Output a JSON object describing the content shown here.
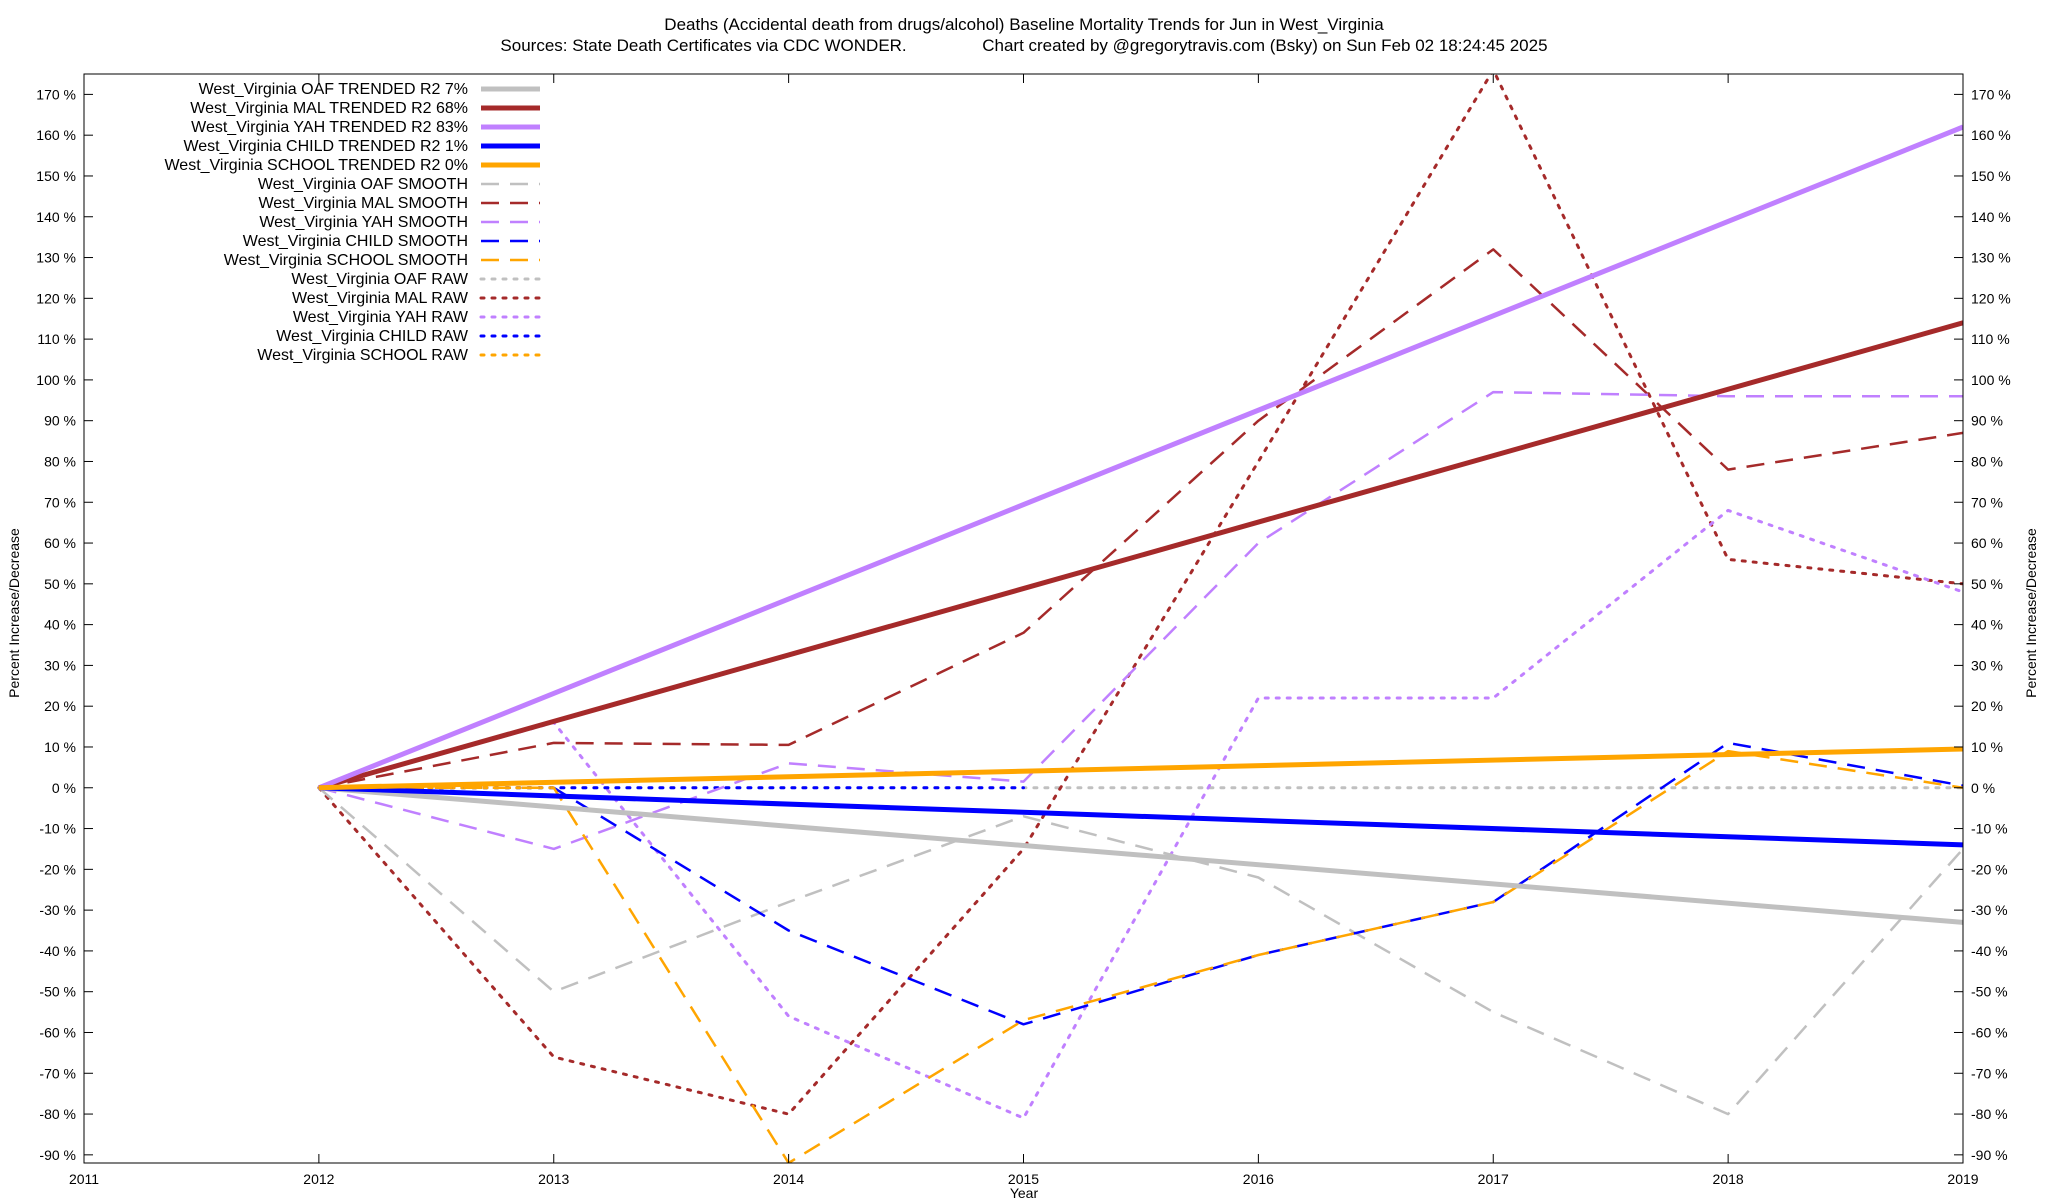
{
  "chart_data": {
    "type": "line",
    "title": "Deaths (Accidental death from drugs/alcohol)  Baseline Mortality Trends for Jun in West_Virginia",
    "subtitle": "Sources: State Death Certificates via CDC WONDER.                Chart created by @gregorytravis.com (Bsky) on Sun Feb 02 18:24:45 2025",
    "xlabel": "Year",
    "ylabel": "Percent Increase/Decrease",
    "y2label": "Percent Increase/Decrease",
    "xlim": [
      2011,
      2019
    ],
    "ylim": [
      -92,
      175
    ],
    "x_ticks": [
      "2011",
      "2012",
      "2013",
      "2014",
      "2015",
      "2016",
      "2017",
      "2018",
      "2019"
    ],
    "y_ticks": [
      "-90 %",
      "-80 %",
      "-70 %",
      "-60 %",
      "-50 %",
      "-40 %",
      "-30 %",
      "-20 %",
      "-10 %",
      "0 %",
      "10 %",
      "20 %",
      "30 %",
      "40 %",
      "50 %",
      "60 %",
      "70 %",
      "80 %",
      "90 %",
      "100 %",
      "110 %",
      "120 %",
      "130 %",
      "140 %",
      "150 %",
      "160 %",
      "170 %"
    ],
    "legend_position": "top-left",
    "series": [
      {
        "name": "West_Virginia OAF TRENDED R2  7%",
        "color": "#c0c0c0",
        "style": "solid",
        "x": [
          2012,
          2019
        ],
        "y": [
          0,
          -33
        ]
      },
      {
        "name": "West_Virginia MAL TRENDED R2  68%",
        "color": "#a52a2a",
        "style": "solid",
        "x": [
          2012,
          2019
        ],
        "y": [
          0,
          114
        ]
      },
      {
        "name": "West_Virginia YAH TRENDED R2  83%",
        "color": "#c080ff",
        "style": "solid",
        "x": [
          2012,
          2019
        ],
        "y": [
          0,
          162
        ]
      },
      {
        "name": "West_Virginia CHILD TRENDED R2  1%",
        "color": "#0000ff",
        "style": "solid",
        "x": [
          2012,
          2019
        ],
        "y": [
          0,
          -14
        ]
      },
      {
        "name": "West_Virginia SCHOOL TRENDED R2  0%",
        "color": "#ffa500",
        "style": "solid",
        "x": [
          2012,
          2019
        ],
        "y": [
          0,
          9.5
        ]
      },
      {
        "name": "West_Virginia OAF SMOOTH",
        "color": "#c0c0c0",
        "style": "dashed",
        "x": [
          2012,
          2013,
          2014,
          2015,
          2016,
          2017,
          2018,
          2019
        ],
        "y": [
          0,
          -50,
          -28,
          -7,
          -22,
          -55,
          -80,
          -15
        ]
      },
      {
        "name": "West_Virginia MAL SMOOTH",
        "color": "#a52a2a",
        "style": "dashed",
        "x": [
          2012,
          2013,
          2014,
          2015,
          2016,
          2017,
          2018,
          2019
        ],
        "y": [
          0,
          11,
          10.5,
          38,
          90,
          132,
          78,
          87
        ]
      },
      {
        "name": "West_Virginia YAH SMOOTH",
        "color": "#c080ff",
        "style": "dashed",
        "x": [
          2012,
          2013,
          2014,
          2015,
          2016,
          2017,
          2018,
          2019
        ],
        "y": [
          0,
          -15,
          6,
          1.5,
          60,
          97,
          96,
          96
        ]
      },
      {
        "name": "West_Virginia CHILD SMOOTH",
        "color": "#0000ff",
        "style": "dashed",
        "x": [
          2012,
          2013,
          2014,
          2015,
          2016,
          2017,
          2018,
          2019
        ],
        "y": [
          0,
          0,
          -35,
          -58,
          -41,
          -28,
          11,
          0.5
        ]
      },
      {
        "name": "West_Virginia SCHOOL SMOOTH",
        "color": "#ffa500",
        "style": "dashed",
        "x": [
          2012,
          2013,
          2014,
          2015,
          2016,
          2017,
          2018,
          2019
        ],
        "y": [
          0,
          0,
          -92,
          -57,
          -41,
          -28,
          9,
          0
        ]
      },
      {
        "name": "West_Virginia OAF RAW",
        "color": "#c0c0c0",
        "style": "dotted",
        "x": [
          2012,
          2013,
          2014,
          2015,
          2016,
          2017,
          2018,
          2019
        ],
        "y": [
          0,
          0,
          0,
          0,
          0,
          0,
          0,
          0
        ]
      },
      {
        "name": "West_Virginia MAL RAW",
        "color": "#a52a2a",
        "style": "dotted",
        "x": [
          2012,
          2013,
          2014,
          2015,
          2016,
          2017,
          2018,
          2019
        ],
        "y": [
          0,
          -66,
          -80,
          -15,
          80,
          176,
          56,
          50
        ]
      },
      {
        "name": "West_Virginia YAH RAW",
        "color": "#c080ff",
        "style": "dotted",
        "x": [
          2012,
          2013,
          2014,
          2015,
          2016,
          2017,
          2018,
          2019
        ],
        "y": [
          0,
          16,
          -56,
          -81,
          22,
          22,
          68,
          48
        ]
      },
      {
        "name": "West_Virginia CHILD RAW",
        "color": "#0000ff",
        "style": "dotted",
        "x": [
          2012,
          2013,
          2014,
          2015
        ],
        "y": [
          0,
          0,
          0,
          0
        ]
      },
      {
        "name": "West_Virginia SCHOOL RAW",
        "color": "#ffa500",
        "style": "dotted",
        "x": [
          2012,
          2013
        ],
        "y": [
          0,
          0
        ]
      }
    ]
  }
}
